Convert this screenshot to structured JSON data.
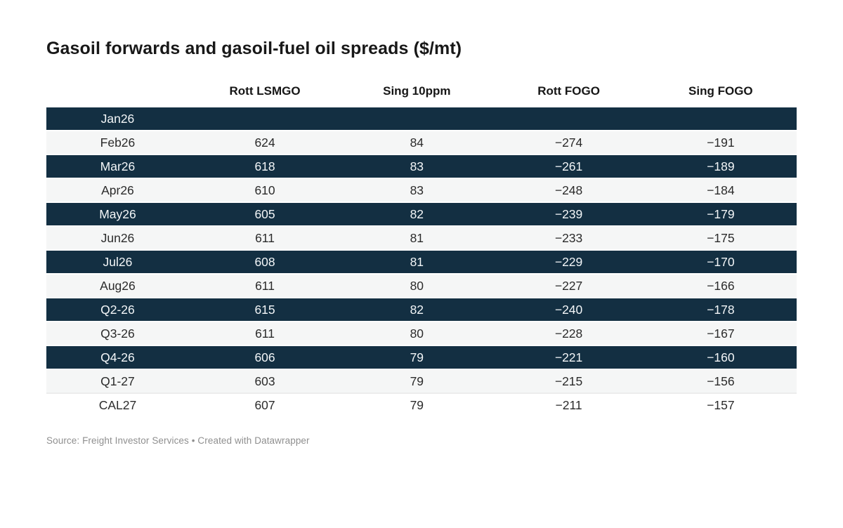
{
  "title": "Gasoil forwards and gasoil-fuel oil spreads ($/mt)",
  "source_note": "Source: Freight Investor Services • Created with Datawrapper",
  "colors": {
    "dark_row_bg": "#132f42",
    "dark_row_text": "#f3f6f8",
    "light_row_bg": "#f5f6f6",
    "white_row_bg": "#ffffff",
    "header_text": "#161616",
    "body_text": "#2b2b2b",
    "source_text": "#8f8f8f"
  },
  "chart_data": {
    "type": "table",
    "title": "Gasoil forwards and gasoil-fuel oil spreads ($/mt)",
    "columns": [
      "",
      "Rott LSMGO",
      "Sing 10ppm",
      "Rott FOGO",
      "Sing FOGO"
    ],
    "header": {
      "label": "",
      "c1": "Rott LSMGO",
      "c2": "Sing 10ppm",
      "c3": "Rott FOGO",
      "c4": "Sing FOGO"
    },
    "rows": [
      {
        "label": "Jan26",
        "c1": "",
        "c2": "",
        "c3": "",
        "c4": "",
        "style": "dark"
      },
      {
        "label": "Feb26",
        "c1": "624",
        "c2": "84",
        "c3": "−274",
        "c4": "−191",
        "style": "light"
      },
      {
        "label": "Mar26",
        "c1": "618",
        "c2": "83",
        "c3": "−261",
        "c4": "−189",
        "style": "dark"
      },
      {
        "label": "Apr26",
        "c1": "610",
        "c2": "83",
        "c3": "−248",
        "c4": "−184",
        "style": "light"
      },
      {
        "label": "May26",
        "c1": "605",
        "c2": "82",
        "c3": "−239",
        "c4": "−179",
        "style": "dark"
      },
      {
        "label": "Jun26",
        "c1": "611",
        "c2": "81",
        "c3": "−233",
        "c4": "−175",
        "style": "light"
      },
      {
        "label": "Jul26",
        "c1": "608",
        "c2": "81",
        "c3": "−229",
        "c4": "−170",
        "style": "dark"
      },
      {
        "label": "Aug26",
        "c1": "611",
        "c2": "80",
        "c3": "−227",
        "c4": "−166",
        "style": "light"
      },
      {
        "label": "Q2-26",
        "c1": "615",
        "c2": "82",
        "c3": "−240",
        "c4": "−178",
        "style": "dark"
      },
      {
        "label": "Q3-26",
        "c1": "611",
        "c2": "80",
        "c3": "−228",
        "c4": "−167",
        "style": "light"
      },
      {
        "label": "Q4-26",
        "c1": "606",
        "c2": "79",
        "c3": "−221",
        "c4": "−160",
        "style": "dark"
      },
      {
        "label": "Q1-27",
        "c1": "603",
        "c2": "79",
        "c3": "−215",
        "c4": "−156",
        "style": "light"
      },
      {
        "label": "CAL27",
        "c1": "607",
        "c2": "79",
        "c3": "−211",
        "c4": "−157",
        "style": "white"
      }
    ]
  }
}
